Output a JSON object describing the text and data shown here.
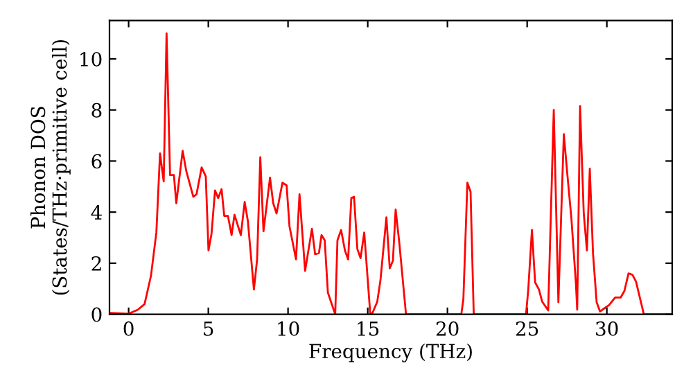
{
  "chart_data": {
    "type": "line",
    "xlabel": "Frequency (THz)",
    "ylabel": "Phonon DOS\n(States/THz·primitive cell)",
    "xlim": [
      -1.2,
      34.1
    ],
    "ylim": [
      0,
      11.5
    ],
    "xticks": [
      0,
      5,
      10,
      15,
      20,
      25,
      30
    ],
    "yticks": [
      0,
      2,
      4,
      6,
      8,
      10
    ],
    "grid": false,
    "marker": "none",
    "line_style": "solid",
    "series": [
      {
        "color": "#ff0000",
        "x": [
          -1.2,
          0,
          0.58,
          1.0,
          1.4,
          1.74,
          1.97,
          2.2,
          2.38,
          2.6,
          2.84,
          2.99,
          3.39,
          3.62,
          4.06,
          4.26,
          4.58,
          4.84,
          5.01,
          5.2,
          5.42,
          5.62,
          5.83,
          6.0,
          6.23,
          6.46,
          6.64,
          7.04,
          7.28,
          7.48,
          7.86,
          8.06,
          8.26,
          8.46,
          8.87,
          9.07,
          9.28,
          9.65,
          9.91,
          10.09,
          10.5,
          10.72,
          11.07,
          11.5,
          11.7,
          11.94,
          12.1,
          12.3,
          12.5,
          12.96,
          13.1,
          13.33,
          13.57,
          13.77,
          13.97,
          14.14,
          14.35,
          14.55,
          14.78,
          15.16,
          15.3,
          15.6,
          15.8,
          16.17,
          16.38,
          16.58,
          16.75,
          16.98,
          17.4,
          20.87,
          21.0,
          21.25,
          21.45,
          21.65,
          24.93,
          25.07,
          25.3,
          25.5,
          25.74,
          25.94,
          26.32,
          26.67,
          26.96,
          27.3,
          27.54,
          27.77,
          28.06,
          28.14,
          28.32,
          28.55,
          28.75,
          28.93,
          29.13,
          29.36,
          29.57,
          29.86,
          30.14,
          30.52,
          30.87,
          31.1,
          31.36,
          31.6,
          31.83,
          32.32,
          34.06
        ],
        "values": [
          0.05,
          0.02,
          0.18,
          0.4,
          1.5,
          3.2,
          6.3,
          5.2,
          11.0,
          5.45,
          5.45,
          4.35,
          6.4,
          5.6,
          4.6,
          4.7,
          5.75,
          5.4,
          2.5,
          3.15,
          4.85,
          4.55,
          4.9,
          3.85,
          3.85,
          3.1,
          3.9,
          3.1,
          4.4,
          3.65,
          0.97,
          2.15,
          6.15,
          3.25,
          5.35,
          4.35,
          3.95,
          5.15,
          5.05,
          3.45,
          2.15,
          4.7,
          1.7,
          3.35,
          2.35,
          2.4,
          3.1,
          2.9,
          0.85,
          0,
          2.9,
          3.3,
          2.5,
          2.15,
          4.55,
          4.6,
          2.55,
          2.2,
          3.2,
          0,
          0.05,
          0.5,
          1.35,
          3.8,
          1.8,
          2.1,
          4.1,
          2.8,
          0,
          0,
          0.6,
          5.15,
          4.8,
          0,
          0,
          0.97,
          3.3,
          1.25,
          0.97,
          0.5,
          0.15,
          8.0,
          0.47,
          7.05,
          5.35,
          3.8,
          1.2,
          0.18,
          8.15,
          3.95,
          2.5,
          5.7,
          2.4,
          0.47,
          0.11,
          0.24,
          0.36,
          0.66,
          0.66,
          0.91,
          1.6,
          1.55,
          1.28,
          0,
          0
        ]
      }
    ]
  }
}
